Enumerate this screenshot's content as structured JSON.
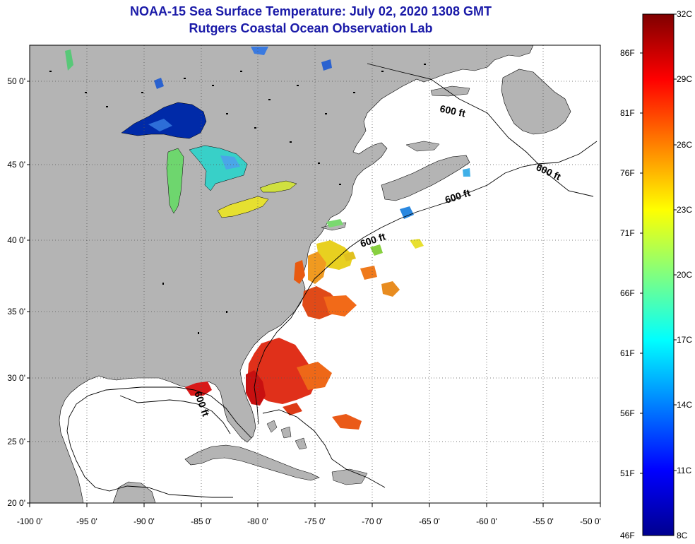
{
  "header": {
    "title_line1": "NOAA-15 Sea Surface Temperature:  July 02, 2020 1308 GMT",
    "title_line2": "Rutgers Coastal Ocean Observation Lab"
  },
  "map": {
    "lat_labels": [
      "50 0'",
      "45 0'",
      "40 0'",
      "35 0'",
      "30 0'",
      "25 0'",
      "20 0'"
    ],
    "lon_labels": [
      "-100 0'",
      "-95 0'",
      "-90 0'",
      "-85 0'",
      "-80 0'",
      "-75 0'",
      "-70 0'",
      "-65 0'",
      "-60 0'",
      "-55 0'",
      "-50 0'"
    ],
    "contour_labels": [
      "600 ft",
      "600 ft",
      "600 ft",
      "600 ft",
      "600 ft"
    ],
    "colors": {
      "land": "#b4b4b4",
      "ocean": "#ffffff",
      "grid": "#555555"
    }
  },
  "colorbar": {
    "fahrenheit_labels": [
      "86F",
      "81F",
      "76F",
      "71F",
      "66F",
      "61F",
      "56F",
      "51F",
      "46F"
    ],
    "celsius_labels": [
      "32C",
      "29C",
      "26C",
      "23C",
      "20C",
      "17C",
      "14C",
      "11C",
      "8C"
    ],
    "gradient": [
      "#7f0000",
      "#ff0000",
      "#ff8000",
      "#ffff00",
      "#80ff80",
      "#00ffff",
      "#0080ff",
      "#0000ff",
      "#00008f"
    ]
  }
}
